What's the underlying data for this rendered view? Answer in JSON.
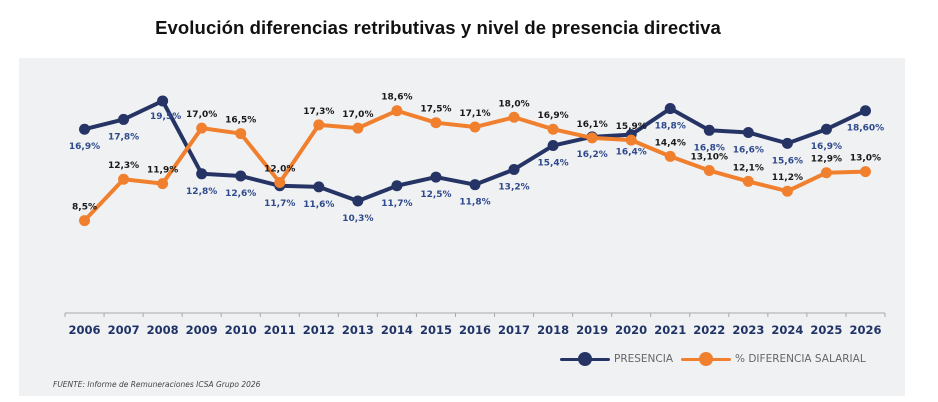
{
  "chart_data": {
    "type": "line",
    "title": "Evolución diferencias retributivas y nivel de presencia directiva",
    "xlabel": "",
    "ylabel": "",
    "ylim": [
      0,
      24
    ],
    "grid": false,
    "legend_position": "bottom-right",
    "categories": [
      "2006",
      "2007",
      "2008",
      "2009",
      "2010",
      "2011",
      "2012",
      "2013",
      "2014",
      "2015",
      "2016",
      "2017",
      "2018",
      "2019",
      "2020",
      "2021",
      "2022",
      "2023",
      "2024",
      "2025",
      "2026"
    ],
    "series": [
      {
        "name": "PRESENCIA",
        "color": "#253465",
        "label_color": "#2f4a8c",
        "label_position": "below",
        "values": [
          16.9,
          17.8,
          19.5,
          12.8,
          12.6,
          11.7,
          11.6,
          10.3,
          11.7,
          12.5,
          11.8,
          13.2,
          15.4,
          16.2,
          16.4,
          18.8,
          16.8,
          16.6,
          15.6,
          16.9,
          18.6
        ],
        "labels": [
          "16,9%",
          "17,8%",
          "19,5%",
          "12,8%",
          "12,6%",
          "11,7%",
          "11,6%",
          "10,3%",
          "11,7%",
          "12,5%",
          "11,8%",
          "13,2%",
          "15,4%",
          "16,2%",
          "16,4%",
          "18,8%",
          "16,8%",
          "16,6%",
          "15,6%",
          "16,9%",
          "18,60%"
        ]
      },
      {
        "name": "% DIFERENCIA SALARIAL",
        "color": "#f0802e",
        "label_color": "#1a1a1a",
        "label_position": "above",
        "values": [
          8.5,
          12.3,
          11.9,
          17.0,
          16.5,
          12.0,
          17.3,
          17.0,
          18.6,
          17.5,
          17.1,
          18.0,
          16.9,
          16.1,
          15.9,
          14.4,
          13.1,
          12.1,
          11.2,
          12.9,
          13.0
        ],
        "labels": [
          "8,5%",
          "12,3%",
          "11,9%",
          "17,0%",
          "16,5%",
          "12,0%",
          "17,3%",
          "17,0%",
          "18,6%",
          "17,5%",
          "17,1%",
          "18,0%",
          "16,9%",
          "16,1%",
          "15,9%",
          "14,4%",
          "13,10%",
          "12,1%",
          "11,2%",
          "12,9%",
          "13,0%"
        ]
      }
    ],
    "source": "FUENTE: Informe de Remuneraciones ICSA Grupo 2026"
  }
}
